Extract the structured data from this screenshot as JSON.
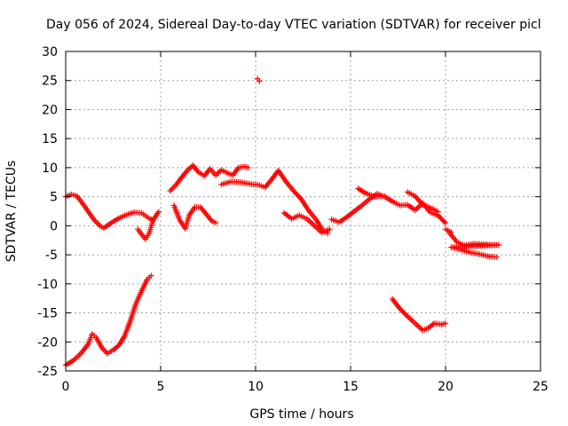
{
  "chart_data": {
    "type": "scatter",
    "title": "Day 056 of 2024, Sidereal Day-to-day VTEC variation (SDTVAR) for receiver picl",
    "xlabel": "GPS time / hours",
    "ylabel": "SDTVAR / TECUs",
    "xlim": [
      0,
      25
    ],
    "ylim": [
      -25,
      30
    ],
    "xticks": [
      0,
      5,
      10,
      15,
      20,
      25
    ],
    "yticks": [
      -25,
      -20,
      -15,
      -10,
      -5,
      0,
      5,
      10,
      15,
      20,
      25,
      30
    ],
    "grid": true,
    "marker": "plus",
    "color": "#ff0000",
    "series": [
      {
        "name": "track-01",
        "points": [
          [
            0,
            5
          ],
          [
            0.3,
            5.4
          ],
          [
            0.6,
            5.1
          ],
          [
            0.9,
            3.8
          ],
          [
            1.2,
            2.4
          ],
          [
            1.5,
            1
          ],
          [
            1.8,
            0
          ],
          [
            2.0,
            -0.4
          ],
          [
            2.4,
            0.5
          ],
          [
            2.8,
            1.3
          ],
          [
            3.2,
            1.9
          ],
          [
            3.6,
            2.3
          ],
          [
            4.0,
            2.2
          ],
          [
            4.3,
            1.5
          ],
          [
            4.6,
            0.9
          ]
        ]
      },
      {
        "name": "track-02",
        "points": [
          [
            3.8,
            -0.6
          ],
          [
            4.0,
            -1.5
          ],
          [
            4.2,
            -2.3
          ],
          [
            4.4,
            -1.3
          ],
          [
            4.6,
            1
          ],
          [
            4.9,
            2.4
          ]
        ]
      },
      {
        "name": "track-03",
        "points": [
          [
            5.5,
            6
          ],
          [
            5.8,
            7
          ],
          [
            6.1,
            8.3
          ],
          [
            6.4,
            9.5
          ],
          [
            6.7,
            10.4
          ],
          [
            7.0,
            9.2
          ],
          [
            7.3,
            8.6
          ],
          [
            7.6,
            9.8
          ],
          [
            7.9,
            8.7
          ],
          [
            8.2,
            9.6
          ],
          [
            8.5,
            9.1
          ],
          [
            8.8,
            8.7
          ],
          [
            9.1,
            10
          ],
          [
            9.4,
            10.2
          ],
          [
            9.6,
            10
          ]
        ]
      },
      {
        "name": "track-04",
        "points": [
          [
            5.7,
            3.5
          ],
          [
            6.0,
            1
          ],
          [
            6.3,
            -0.5
          ],
          [
            6.5,
            1.8
          ],
          [
            6.8,
            3.2
          ],
          [
            7.1,
            3.2
          ],
          [
            7.4,
            2
          ],
          [
            7.7,
            0.8
          ],
          [
            7.9,
            0.5
          ]
        ]
      },
      {
        "name": "track-05",
        "points": [
          [
            8.2,
            7.1
          ],
          [
            8.7,
            7.6
          ],
          [
            9.2,
            7.5
          ],
          [
            9.7,
            7.2
          ],
          [
            10.2,
            7
          ],
          [
            10.5,
            6.6
          ],
          [
            10.8,
            7.8
          ],
          [
            11.2,
            9.5
          ],
          [
            11.6,
            7.6
          ],
          [
            12.0,
            6
          ],
          [
            12.4,
            4.6
          ],
          [
            12.8,
            2.6
          ],
          [
            13.2,
            1
          ],
          [
            13.5,
            -0.6
          ],
          [
            13.8,
            -1.3
          ]
        ]
      },
      {
        "name": "track-06",
        "points": [
          [
            11.5,
            2.2
          ],
          [
            11.9,
            1.2
          ],
          [
            12.3,
            1.8
          ],
          [
            12.7,
            1.2
          ],
          [
            13.1,
            0
          ],
          [
            13.5,
            -1.2
          ],
          [
            13.9,
            -0.6
          ]
        ]
      },
      {
        "name": "track-07",
        "points": [
          [
            10.1,
            25.3
          ],
          [
            10.2,
            24.9
          ]
        ]
      },
      {
        "name": "track-08",
        "points": [
          [
            14.0,
            1.1
          ],
          [
            14.4,
            0.6
          ],
          [
            14.8,
            1.5
          ],
          [
            15.2,
            2.5
          ],
          [
            15.6,
            3.5
          ],
          [
            16.0,
            4.6
          ],
          [
            16.4,
            5.5
          ],
          [
            16.8,
            5
          ],
          [
            17.2,
            4.2
          ],
          [
            17.6,
            3.5
          ],
          [
            18.0,
            3.6
          ],
          [
            18.4,
            2.7
          ],
          [
            18.8,
            3.9
          ],
          [
            19.2,
            2.3
          ],
          [
            19.6,
            1.8
          ],
          [
            20.0,
            0.5
          ]
        ]
      },
      {
        "name": "track-09",
        "points": [
          [
            15.4,
            6.4
          ],
          [
            15.8,
            5.6
          ],
          [
            16.3,
            5
          ],
          [
            16.8,
            5.1
          ]
        ]
      },
      {
        "name": "track-10",
        "points": [
          [
            18.0,
            5.8
          ],
          [
            18.4,
            5.1
          ],
          [
            18.8,
            3.6
          ],
          [
            19.2,
            3.1
          ],
          [
            19.6,
            2.4
          ]
        ]
      },
      {
        "name": "track-11",
        "points": [
          [
            20.2,
            -1.2
          ],
          [
            20.6,
            -2.8
          ],
          [
            21.0,
            -3.4
          ],
          [
            21.5,
            -3.1
          ],
          [
            22.0,
            -3.2
          ],
          [
            22.4,
            -3.3
          ],
          [
            22.8,
            -3.3
          ],
          [
            20.3,
            -3.7
          ],
          [
            20.8,
            -4.1
          ],
          [
            21.3,
            -4.6
          ],
          [
            21.8,
            -4.9
          ],
          [
            22.3,
            -5.3
          ],
          [
            22.7,
            -5.4
          ]
        ]
      },
      {
        "name": "track-12",
        "points": [
          [
            20.0,
            -0.6
          ],
          [
            20.3,
            -1.1
          ]
        ]
      },
      {
        "name": "track-13",
        "points": [
          [
            0,
            -24
          ],
          [
            0.4,
            -23.2
          ],
          [
            0.8,
            -22
          ],
          [
            1.2,
            -20.3
          ],
          [
            1.4,
            -18.6
          ],
          [
            1.6,
            -19.2
          ],
          [
            1.9,
            -21
          ],
          [
            2.2,
            -22
          ],
          [
            2.5,
            -21.4
          ],
          [
            2.8,
            -20.6
          ],
          [
            3.1,
            -19
          ],
          [
            3.4,
            -16.4
          ],
          [
            3.7,
            -13.4
          ],
          [
            4.0,
            -11.2
          ],
          [
            4.3,
            -9.2
          ],
          [
            4.5,
            -8.6
          ]
        ]
      },
      {
        "name": "track-14",
        "points": [
          [
            17.2,
            -12.6
          ],
          [
            17.6,
            -14.3
          ],
          [
            18.0,
            -15.6
          ],
          [
            18.4,
            -16.8
          ],
          [
            18.8,
            -18
          ],
          [
            19.1,
            -17.6
          ],
          [
            19.4,
            -16.8
          ],
          [
            19.8,
            -17
          ],
          [
            20.0,
            -16.8
          ]
        ]
      }
    ]
  }
}
